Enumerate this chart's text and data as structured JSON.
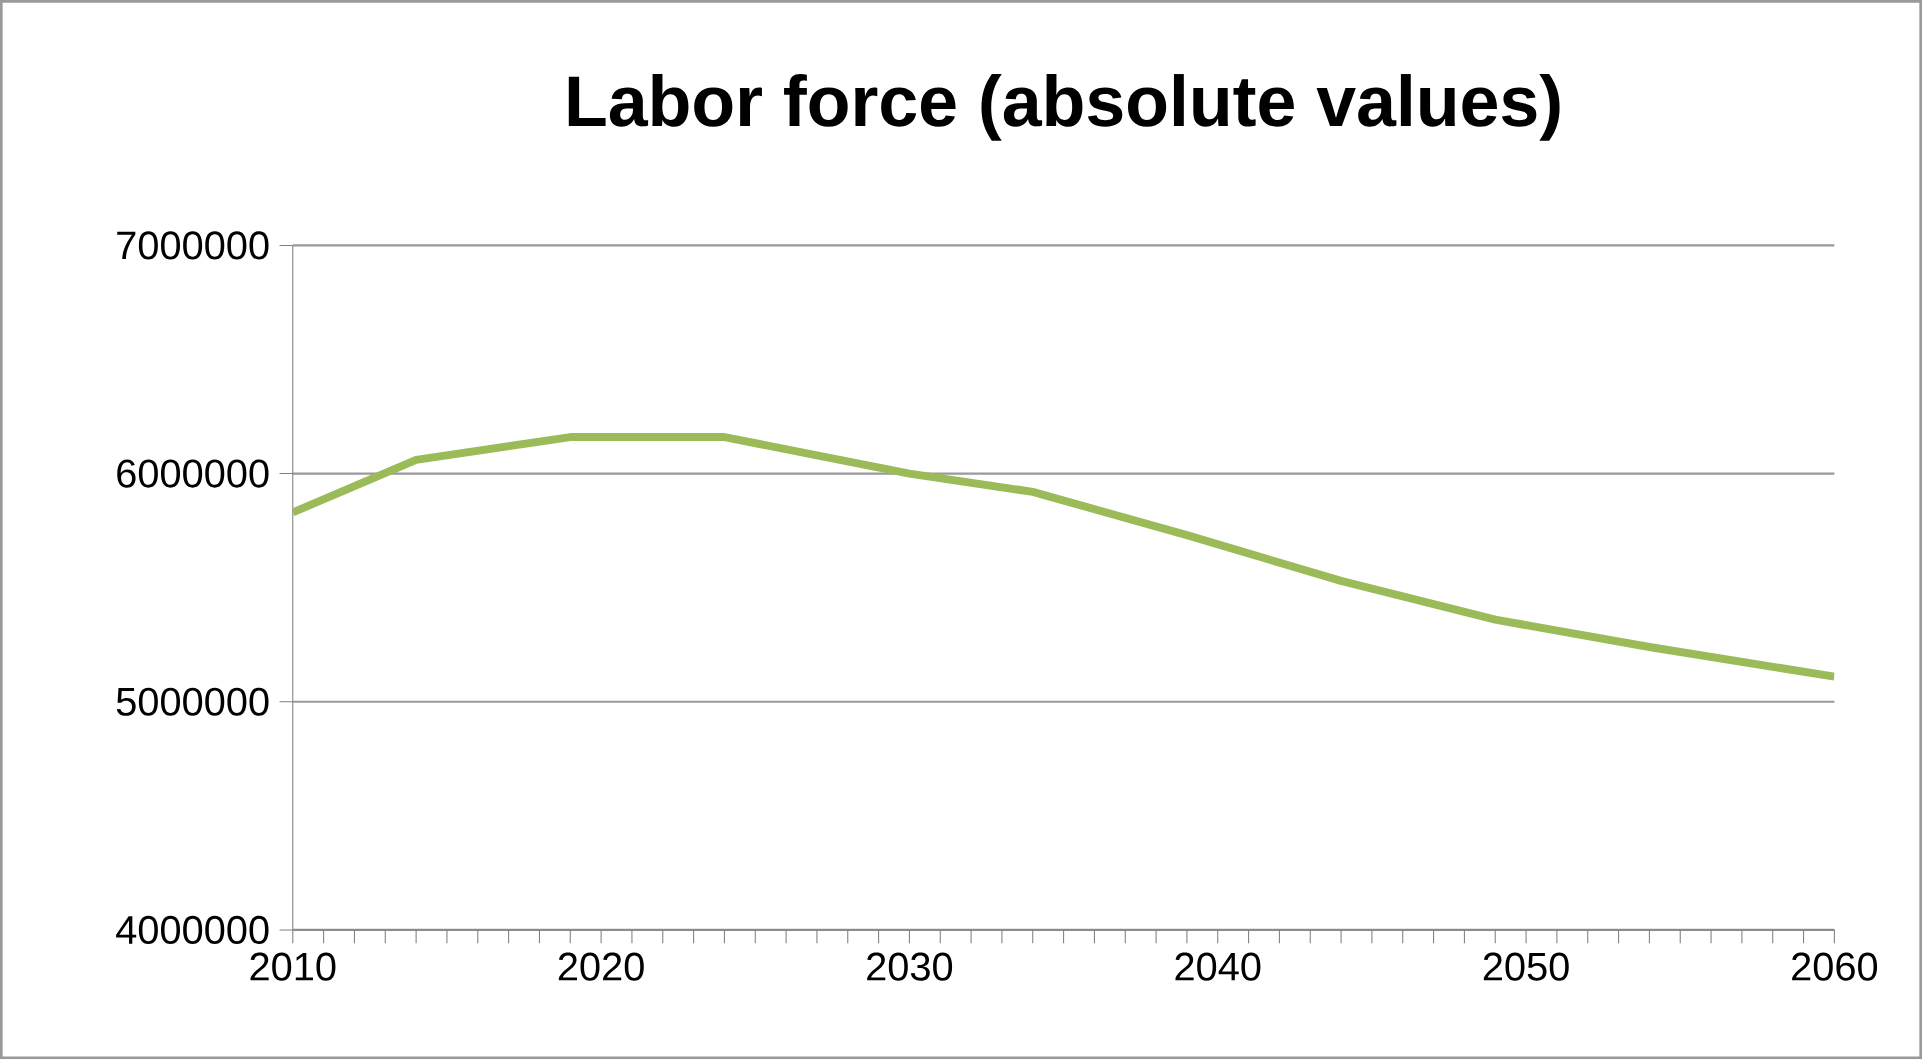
{
  "chart_data": {
    "type": "line",
    "title": "Labor force (absolute values)",
    "x": [
      2010,
      2014,
      2019,
      2024,
      2030,
      2034,
      2039,
      2044,
      2049,
      2054,
      2060
    ],
    "series": [
      {
        "color": "#9bbb59",
        "values": [
          5830000,
          6060000,
          6160000,
          6160000,
          6000000,
          5920000,
          5730000,
          5530000,
          5360000,
          5240000,
          5110000
        ]
      }
    ],
    "xlim": [
      2010,
      2060
    ],
    "xticks": [
      2010,
      2020,
      2030,
      2040,
      2050,
      2060
    ],
    "ylim": [
      4000000,
      7000000
    ],
    "yticks": [
      4000000,
      5000000,
      6000000,
      7000000
    ],
    "grid": "y",
    "marker": "none",
    "line_style": "solid"
  }
}
